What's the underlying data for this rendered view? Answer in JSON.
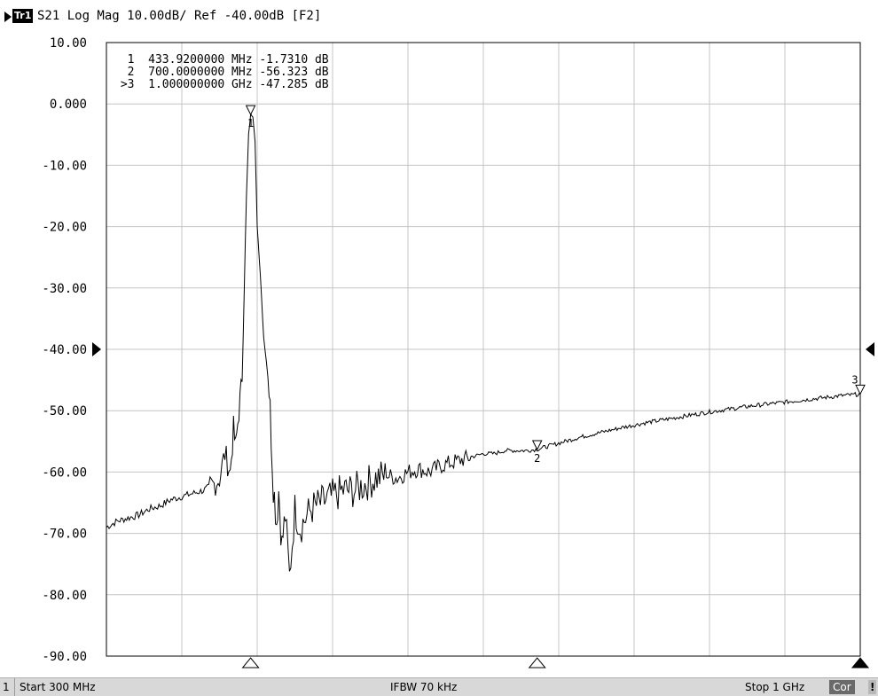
{
  "header": {
    "trace_badge": "Tr1",
    "title": "S21 Log Mag 10.00dB/ Ref -40.00dB [F2]"
  },
  "marker_readout": [
    "  1  433.9200000 MHz -1.7310 dB",
    "  2  700.0000000 MHz -56.323 dB",
    " >3  1.000000000 GHz -47.285 dB"
  ],
  "status": {
    "channel": "1",
    "start": "Start 300 MHz",
    "ifbw": "IFBW 70 kHz",
    "stop": "Stop 1 GHz",
    "cor": "Cor",
    "warn": "!"
  },
  "chart_data": {
    "type": "line",
    "title": "S21 Log Mag 10.00dB/ Ref -40.00dB [F2]",
    "x_unit": "MHz",
    "xlim": [
      300,
      1000
    ],
    "ylim": [
      -90,
      10
    ],
    "y_ticks": [
      "10.00",
      "0.000",
      "-10.00",
      "-20.00",
      "-30.00",
      "-40.00",
      "-50.00",
      "-60.00",
      "-70.00",
      "-80.00",
      "-90.00"
    ],
    "x_divisions": 10,
    "reference_level": -40,
    "grid": true,
    "series": [
      {
        "x": [
          300,
          310,
          320,
          330,
          340,
          350,
          360,
          370,
          380,
          390,
          400,
          405,
          410,
          415,
          418,
          420,
          423,
          426,
          428,
          430,
          432,
          434,
          436,
          438,
          440,
          443,
          446,
          450,
          452,
          455,
          458,
          460,
          463,
          466,
          470,
          475,
          480,
          490,
          500,
          510,
          520,
          530,
          540,
          550,
          560,
          570,
          580,
          590,
          600,
          610,
          620,
          630,
          640,
          650,
          660,
          670,
          680,
          690,
          700,
          720,
          740,
          760,
          780,
          800,
          820,
          840,
          860,
          880,
          900,
          920,
          940,
          960,
          980,
          1000
        ],
        "y": [
          -69,
          -68,
          -67.5,
          -67,
          -66,
          -65.5,
          -64.5,
          -64,
          -63.5,
          -63,
          -62,
          -61,
          -57,
          -60,
          -53,
          -56,
          -50,
          -45,
          -30,
          -15,
          -5,
          -1.7,
          -2,
          -6,
          -20,
          -28,
          -38,
          -43,
          -50,
          -62,
          -68,
          -63,
          -72,
          -67,
          -77,
          -66,
          -69,
          -66,
          -65,
          -64,
          -63,
          -63,
          -62,
          -61,
          -60.5,
          -61,
          -60,
          -59.5,
          -60,
          -59,
          -58.5,
          -58,
          -57.5,
          -57,
          -57,
          -56.5,
          -56.5,
          -56.5,
          -56.3,
          -55.3,
          -54.3,
          -53.5,
          -52.7,
          -52,
          -51.4,
          -50.8,
          -50.2,
          -49.7,
          -49.2,
          -48.8,
          -48.4,
          -48,
          -47.6,
          -47.3
        ]
      }
    ],
    "markers": [
      {
        "id": "1",
        "x": 433.92,
        "y": -1.731
      },
      {
        "id": "2",
        "x": 700,
        "y": -56.323
      },
      {
        "id": "3",
        "x": 1000,
        "y": -47.285
      }
    ]
  }
}
